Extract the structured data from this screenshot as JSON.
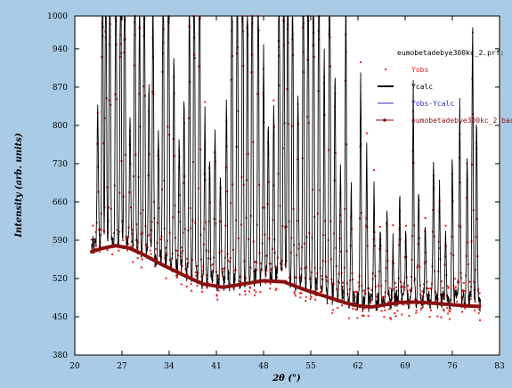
{
  "chart_data": {
    "type": "scatter",
    "title": "",
    "xlabel": "2θ (°)",
    "ylabel": "Intensity (arb. units)",
    "xlim": [
      20,
      83
    ],
    "ylim": [
      380,
      1000
    ],
    "x_ticks": [
      20,
      27,
      34,
      41,
      48,
      55,
      62,
      69,
      76,
      83
    ],
    "y_ticks": [
      380,
      450,
      520,
      590,
      660,
      730,
      800,
      870,
      940,
      1000
    ],
    "x_tick_labels": [
      "20",
      "27",
      "34",
      "41",
      "48",
      "55",
      "62",
      "69",
      "76",
      "83"
    ],
    "y_tick_labels": [
      "380",
      "450",
      "520",
      "590",
      "660",
      "730",
      "800",
      "870",
      "940",
      "1000"
    ],
    "grid": false,
    "legend_placement": "top-right",
    "legend_title": "eumobetadebye300kc_2.prf:",
    "series": [
      {
        "name": "Yobs",
        "kind": "points",
        "color": "#e82020"
      },
      {
        "name": "Ycalc",
        "kind": "line",
        "color": "#000000"
      },
      {
        "name": "Yobs-Ycalc",
        "kind": "line",
        "color": "#3030c0"
      },
      {
        "name": "eumobetadebye300kc_2.bac:",
        "kind": "line",
        "color": "#8b1010",
        "x": [
          22.5,
          24,
          26,
          28,
          30,
          33,
          36,
          39,
          42,
          45,
          48,
          51,
          54,
          57,
          60,
          62,
          64,
          66,
          68,
          70,
          72,
          74,
          76,
          78,
          80
        ],
        "values": [
          569,
          575,
          580,
          576,
          565,
          545,
          527,
          510,
          504,
          510,
          516,
          514,
          500,
          488,
          476,
          470,
          468,
          472,
          476,
          477,
          476,
          474,
          472,
          470,
          469
        ]
      }
    ],
    "peaks": [
      {
        "x": 23.4,
        "y": 740
      },
      {
        "x": 24.1,
        "y": 1000
      },
      {
        "x": 24.6,
        "y": 1000
      },
      {
        "x": 25.2,
        "y": 1000
      },
      {
        "x": 26.1,
        "y": 1000
      },
      {
        "x": 26.8,
        "y": 1000
      },
      {
        "x": 27.4,
        "y": 1000
      },
      {
        "x": 28.2,
        "y": 720
      },
      {
        "x": 28.9,
        "y": 1000
      },
      {
        "x": 29.6,
        "y": 850
      },
      {
        "x": 30.3,
        "y": 1000
      },
      {
        "x": 31.0,
        "y": 760
      },
      {
        "x": 31.6,
        "y": 880
      },
      {
        "x": 32.4,
        "y": 690
      },
      {
        "x": 33.1,
        "y": 950
      },
      {
        "x": 33.9,
        "y": 1000
      },
      {
        "x": 34.7,
        "y": 780
      },
      {
        "x": 35.5,
        "y": 680
      },
      {
        "x": 36.2,
        "y": 720
      },
      {
        "x": 37.0,
        "y": 870
      },
      {
        "x": 37.7,
        "y": 1000
      },
      {
        "x": 38.5,
        "y": 1000
      },
      {
        "x": 39.3,
        "y": 700
      },
      {
        "x": 40.0,
        "y": 640
      },
      {
        "x": 40.8,
        "y": 680
      },
      {
        "x": 41.6,
        "y": 620
      },
      {
        "x": 42.5,
        "y": 720
      },
      {
        "x": 43.3,
        "y": 950
      },
      {
        "x": 44.1,
        "y": 1000
      },
      {
        "x": 44.9,
        "y": 1000
      },
      {
        "x": 45.6,
        "y": 880
      },
      {
        "x": 46.3,
        "y": 1000
      },
      {
        "x": 47.2,
        "y": 920
      },
      {
        "x": 48.0,
        "y": 780
      },
      {
        "x": 48.7,
        "y": 690
      },
      {
        "x": 49.5,
        "y": 720
      },
      {
        "x": 50.3,
        "y": 960
      },
      {
        "x": 51.0,
        "y": 1000
      },
      {
        "x": 51.6,
        "y": 1000
      },
      {
        "x": 52.3,
        "y": 900
      },
      {
        "x": 53.1,
        "y": 720
      },
      {
        "x": 53.9,
        "y": 990
      },
      {
        "x": 54.6,
        "y": 1000
      },
      {
        "x": 55.4,
        "y": 1000
      },
      {
        "x": 56.2,
        "y": 970
      },
      {
        "x": 57.0,
        "y": 760
      },
      {
        "x": 57.8,
        "y": 1000
      },
      {
        "x": 58.6,
        "y": 740
      },
      {
        "x": 59.4,
        "y": 620
      },
      {
        "x": 60.2,
        "y": 830
      },
      {
        "x": 61.0,
        "y": 600
      },
      {
        "x": 62.4,
        "y": 720
      },
      {
        "x": 63.3,
        "y": 640
      },
      {
        "x": 64.4,
        "y": 600
      },
      {
        "x": 65.3,
        "y": 560
      },
      {
        "x": 66.3,
        "y": 580
      },
      {
        "x": 67.2,
        "y": 540
      },
      {
        "x": 68.2,
        "y": 590
      },
      {
        "x": 69.1,
        "y": 560
      },
      {
        "x": 70.2,
        "y": 720
      },
      {
        "x": 71.0,
        "y": 600
      },
      {
        "x": 72.0,
        "y": 560
      },
      {
        "x": 73.2,
        "y": 640
      },
      {
        "x": 74.1,
        "y": 600
      },
      {
        "x": 75.0,
        "y": 560
      },
      {
        "x": 76.0,
        "y": 640
      },
      {
        "x": 77.1,
        "y": 700
      },
      {
        "x": 78.2,
        "y": 640
      },
      {
        "x": 79.0,
        "y": 790
      },
      {
        "x": 79.6,
        "y": 680
      }
    ]
  }
}
